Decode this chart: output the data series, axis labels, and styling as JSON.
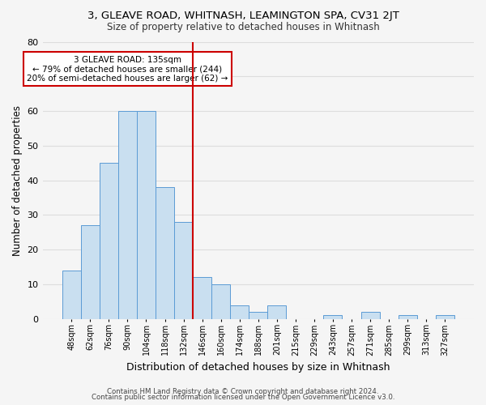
{
  "title": "3, GLEAVE ROAD, WHITNASH, LEAMINGTON SPA, CV31 2JT",
  "subtitle": "Size of property relative to detached houses in Whitnash",
  "xlabel": "Distribution of detached houses by size in Whitnash",
  "ylabel": "Number of detached properties",
  "bar_labels": [
    "48sqm",
    "62sqm",
    "76sqm",
    "90sqm",
    "104sqm",
    "118sqm",
    "132sqm",
    "146sqm",
    "160sqm",
    "174sqm",
    "188sqm",
    "201sqm",
    "215sqm",
    "229sqm",
    "243sqm",
    "257sqm",
    "271sqm",
    "285sqm",
    "299sqm",
    "313sqm",
    "327sqm"
  ],
  "bar_heights": [
    14,
    27,
    45,
    60,
    60,
    38,
    28,
    12,
    10,
    4,
    2,
    4,
    0,
    0,
    1,
    0,
    2,
    0,
    1,
    0,
    1
  ],
  "bar_color": "#c9dff0",
  "bar_edge_color": "#5b9bd5",
  "vline_index": 6,
  "vline_color": "#cc0000",
  "annotation_line1": "3 GLEAVE ROAD: 135sqm",
  "annotation_line2": "← 79% of detached houses are smaller (244)",
  "annotation_line3": "20% of semi-detached houses are larger (62) →",
  "annotation_box_color": "#ffffff",
  "annotation_box_edge_color": "#cc0000",
  "ylim": [
    0,
    80
  ],
  "yticks": [
    0,
    10,
    20,
    30,
    40,
    50,
    60,
    70,
    80
  ],
  "footer_line1": "Contains HM Land Registry data © Crown copyright and database right 2024.",
  "footer_line2": "Contains public sector information licensed under the Open Government Licence v3.0.",
  "background_color": "#f5f5f5",
  "grid_color": "#dddddd"
}
